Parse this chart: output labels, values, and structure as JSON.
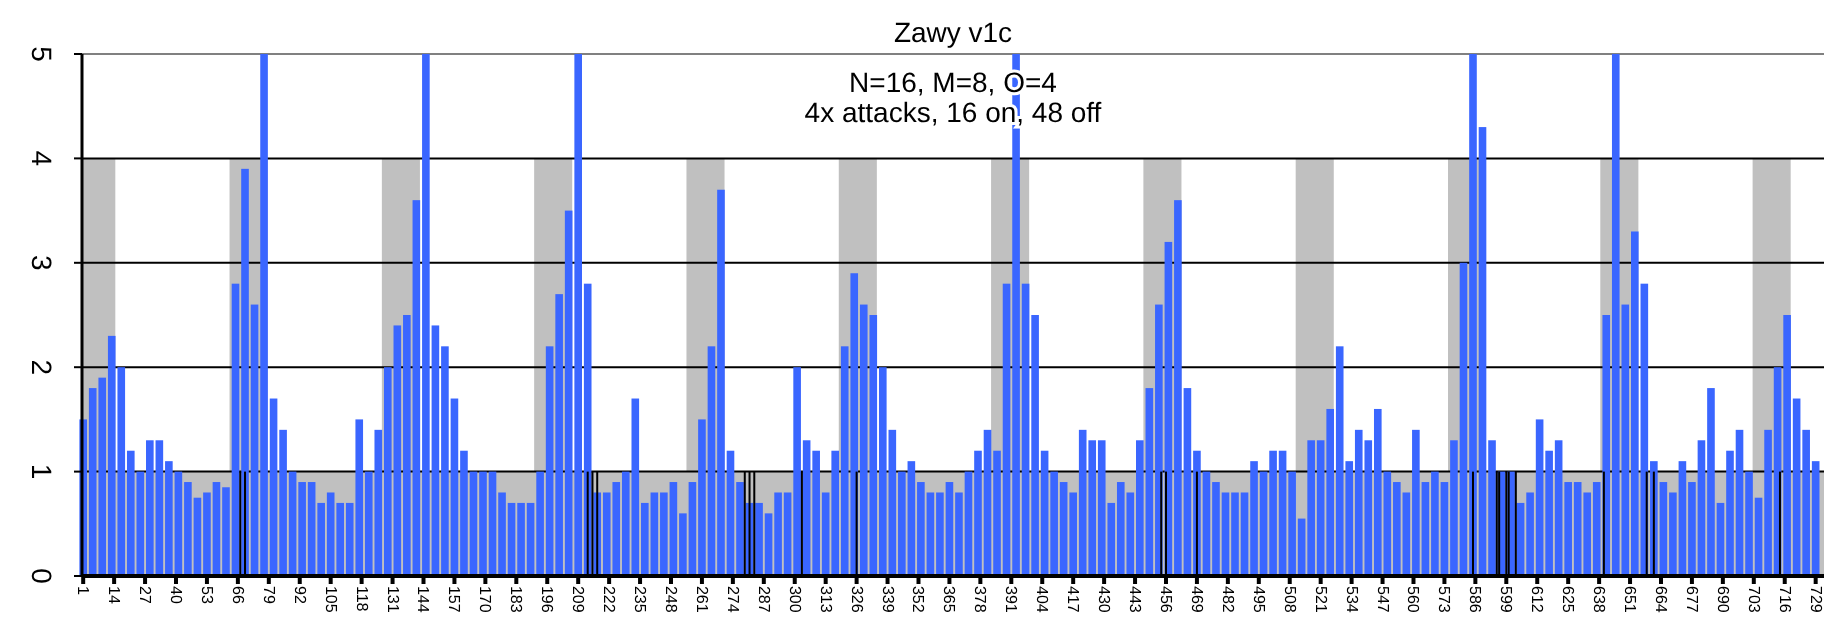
{
  "chart_data": {
    "type": "bar",
    "title": "Zawy  v1c",
    "subtitle": "N=16, M=8, O=4",
    "annotations": [
      "4x attacks, 16 on, 48 off"
    ],
    "xlim": [
      0.5,
      732.5
    ],
    "xticks": [
      1,
      14,
      27,
      40,
      53,
      66,
      79,
      92,
      105,
      118,
      131,
      144,
      157,
      170,
      183,
      196,
      209,
      222,
      235,
      248,
      261,
      274,
      287,
      300,
      313,
      326,
      339,
      352,
      365,
      378,
      391,
      404,
      417,
      430,
      443,
      456,
      469,
      482,
      495,
      508,
      521,
      534,
      547,
      560,
      573,
      586,
      599,
      612,
      625,
      638,
      651,
      664,
      677,
      690,
      703,
      716,
      729
    ],
    "ylim": [
      0,
      5
    ],
    "yticks": [
      0,
      1,
      2,
      3,
      4,
      5
    ],
    "grid": "y",
    "series": [
      {
        "type": "area",
        "color": "#c0c0c0",
        "x": [
          0.5,
          14.5,
          14.5,
          62.5,
          62.5,
          78.5,
          78.5,
          126.5,
          126.5,
          142.5,
          142.5,
          190.5,
          190.5,
          206.5,
          206.5,
          254.5,
          254.5,
          270.5,
          270.5,
          318.5,
          318.5,
          334.5,
          334.5,
          382.5,
          382.5,
          398.5,
          398.5,
          446.5,
          446.5,
          462.5,
          462.5,
          510.5,
          510.5,
          526.5,
          526.5,
          574.5,
          574.5,
          590.5,
          590.5,
          638.5,
          638.5,
          654.5,
          654.5,
          702.5,
          702.5,
          718.5,
          718.5,
          732.5
        ],
        "values": [
          4,
          4,
          1,
          1,
          4,
          4,
          1,
          1,
          4,
          4,
          1,
          1,
          4,
          4,
          1,
          1,
          4,
          4,
          1,
          1,
          4,
          4,
          1,
          1,
          4,
          4,
          1,
          1,
          4,
          4,
          1,
          1,
          4,
          4,
          1,
          1,
          4,
          4,
          1,
          1,
          4,
          4,
          1,
          1,
          4,
          4,
          1,
          1
        ]
      },
      {
        "color": "#3a66ff",
        "x": [
          1,
          5,
          9,
          13,
          17,
          21,
          25,
          29,
          33,
          37,
          41,
          45,
          49,
          53,
          57,
          61,
          65,
          69,
          73,
          77,
          81,
          85,
          89,
          93,
          97,
          101,
          105,
          109,
          113,
          117,
          121,
          125,
          129,
          133,
          137,
          141,
          145,
          149,
          153,
          157,
          161,
          165,
          169,
          173,
          177,
          181,
          185,
          189,
          193,
          197,
          201,
          205,
          209,
          213,
          217,
          221,
          225,
          229,
          233,
          237,
          241,
          245,
          249,
          253,
          257,
          261,
          265,
          269,
          273,
          277,
          281,
          285,
          289,
          293,
          297,
          301,
          305,
          309,
          313,
          317,
          321,
          325,
          329,
          333,
          337,
          341,
          345,
          349,
          353,
          357,
          361,
          365,
          369,
          373,
          377,
          381,
          385,
          389,
          393,
          397,
          401,
          405,
          409,
          413,
          417,
          421,
          425,
          429,
          433,
          437,
          441,
          445,
          449,
          453,
          457,
          461,
          465,
          469,
          473,
          477,
          481,
          485,
          489,
          493,
          497,
          501,
          505,
          509,
          513,
          517,
          521,
          525,
          529,
          533,
          537,
          541,
          545,
          549,
          553,
          557,
          561,
          565,
          569,
          573,
          577,
          581,
          585,
          589,
          593,
          597,
          601,
          605,
          609,
          613,
          617,
          621,
          625,
          629,
          633,
          637,
          641,
          645,
          649,
          653,
          657,
          661,
          665,
          669,
          673,
          677,
          681,
          685,
          689,
          693,
          697,
          701,
          705,
          709,
          713,
          717,
          721,
          725,
          729
        ],
        "values": [
          1.5,
          1.8,
          1.9,
          2.3,
          2.0,
          1.2,
          1.0,
          1.3,
          1.3,
          1.1,
          1.0,
          0.9,
          0.75,
          0.8,
          0.9,
          0.85,
          2.8,
          3.9,
          2.6,
          5.0,
          1.7,
          1.4,
          1.0,
          0.9,
          0.9,
          0.7,
          0.8,
          0.7,
          0.7,
          1.5,
          1.0,
          1.4,
          2.0,
          2.4,
          2.5,
          3.6,
          5.0,
          2.4,
          2.2,
          1.7,
          1.2,
          1.0,
          1.0,
          1.0,
          0.8,
          0.7,
          0.7,
          0.7,
          1.0,
          2.2,
          2.7,
          3.5,
          5.0,
          2.8,
          0.8,
          0.8,
          0.9,
          1.0,
          1.7,
          0.7,
          0.8,
          0.8,
          0.9,
          0.6,
          0.9,
          1.5,
          2.2,
          3.7,
          1.2,
          0.9,
          0.7,
          0.7,
          0.6,
          0.8,
          0.8,
          2.0,
          1.3,
          1.2,
          0.8,
          1.2,
          2.2,
          2.9,
          2.6,
          2.5,
          2.0,
          1.4,
          1.0,
          1.1,
          0.9,
          0.8,
          0.8,
          0.9,
          0.8,
          1.0,
          1.2,
          1.4,
          1.2,
          2.8,
          5.0,
          2.8,
          2.5,
          1.2,
          1.0,
          0.9,
          0.8,
          1.4,
          1.3,
          1.3,
          0.7,
          0.9,
          0.8,
          1.3,
          1.8,
          2.6,
          3.2,
          3.6,
          1.8,
          1.2,
          1.0,
          0.9,
          0.8,
          0.8,
          0.8,
          1.1,
          1.0,
          1.2,
          1.2,
          1.0,
          0.55,
          1.3,
          1.3,
          1.6,
          2.2,
          1.1,
          1.4,
          1.3,
          1.6,
          1.0,
          0.9,
          0.8,
          1.4,
          0.9,
          1.0,
          0.9,
          1.3,
          3.0,
          5.0,
          4.3,
          1.3,
          1.0,
          1.0,
          0.7,
          0.8,
          1.5,
          1.2,
          1.3,
          0.9,
          0.9,
          0.8,
          0.9,
          2.5,
          5.0,
          2.6,
          3.3,
          2.8,
          1.1,
          0.9,
          0.8,
          1.1,
          0.9,
          1.3,
          1.8,
          0.7,
          1.2,
          1.4,
          1.0,
          0.75,
          1.4,
          2.0,
          2.5,
          1.7,
          1.4,
          1.1
        ]
      },
      {
        "color": "#000000",
        "x": [
          67,
          69,
          213,
          215,
          217,
          279,
          281,
          283,
          303,
          326,
          454,
          456,
          469,
          585,
          595,
          596,
          599,
          600,
          603,
          640,
          658,
          661,
          714
        ],
        "values": [
          1,
          1,
          1,
          1,
          1,
          1,
          1,
          1,
          1,
          1,
          1,
          1,
          1,
          1,
          1,
          1,
          1,
          1,
          1,
          1,
          1,
          1,
          1
        ]
      }
    ]
  }
}
